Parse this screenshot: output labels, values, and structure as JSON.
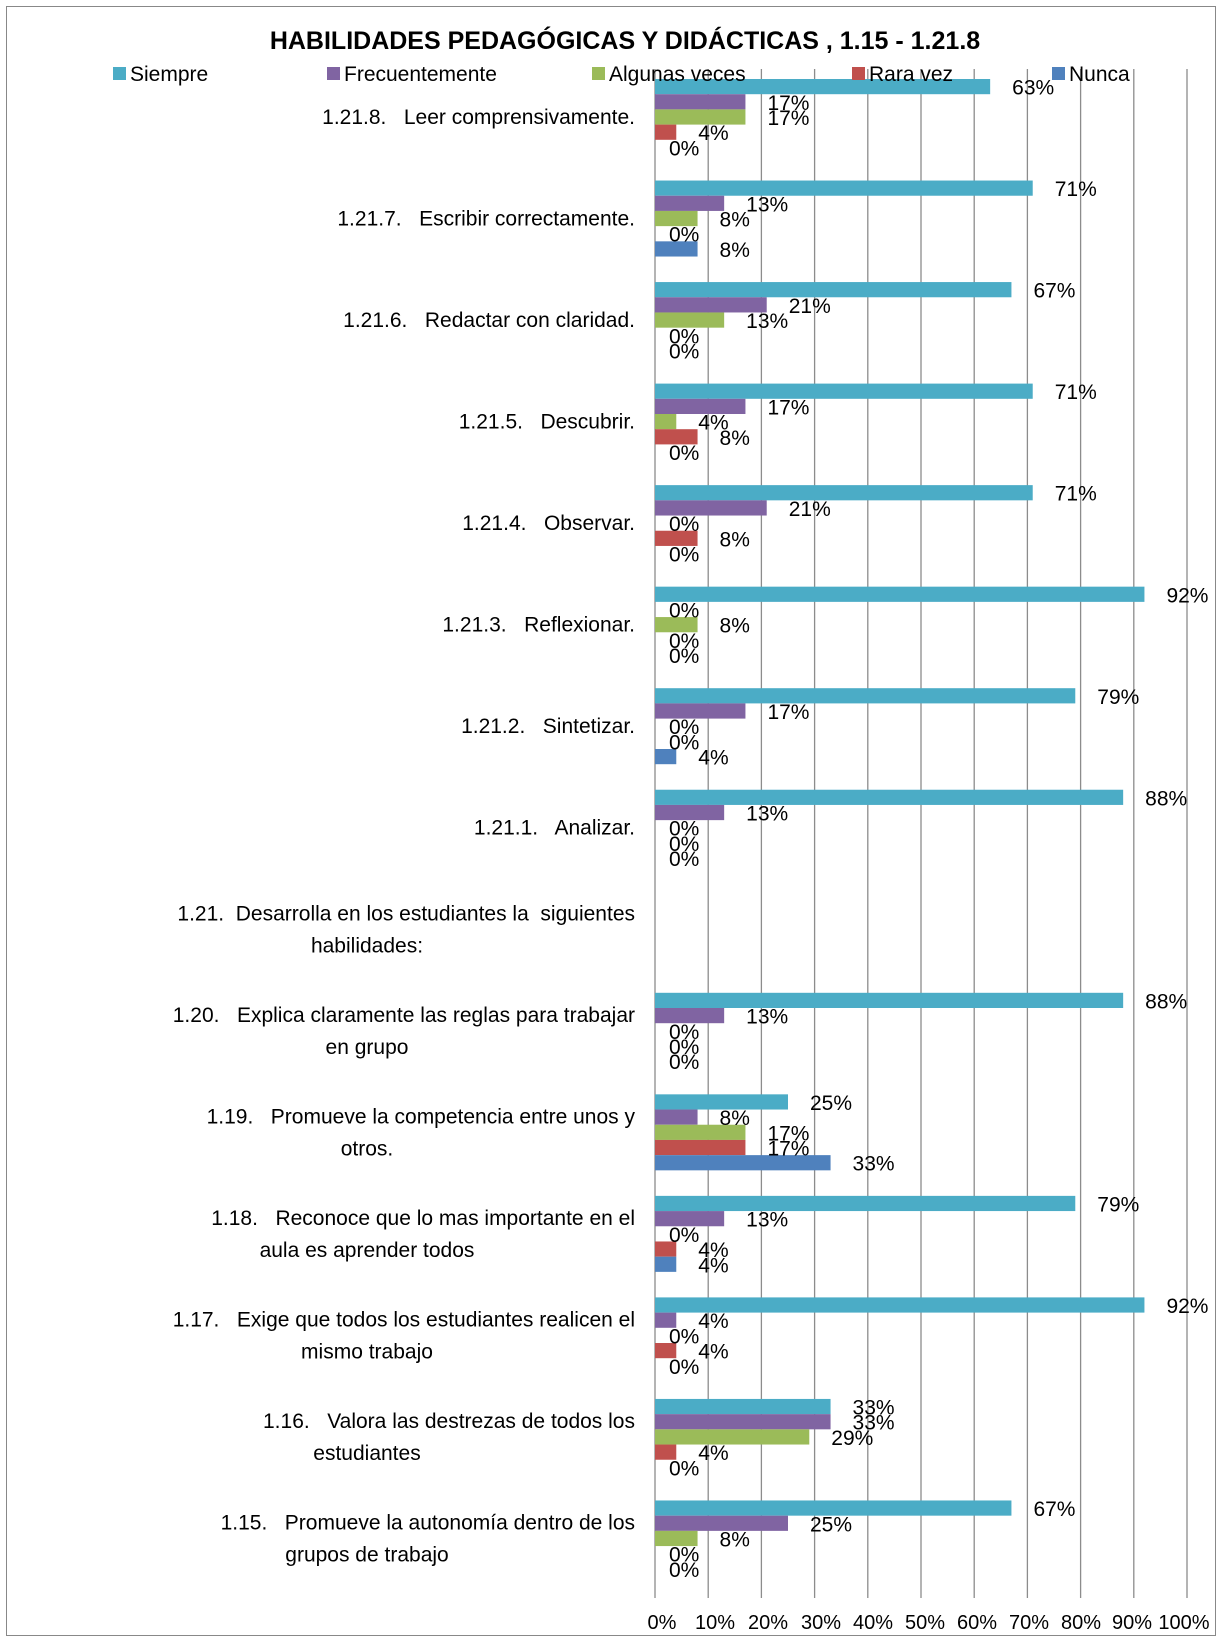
{
  "chart_data": {
    "type": "bar",
    "orientation": "horizontal",
    "title": "HABILIDADES PEDAGÓGICAS Y DIDÁCTICAS , 1.15 - 1.21.8",
    "xlim": [
      0,
      100
    ],
    "x_ticks": [
      "0%",
      "10%",
      "20%",
      "30%",
      "40%",
      "50%",
      "60%",
      "70%",
      "80%",
      "90%",
      "100%"
    ],
    "grid": true,
    "legend_position": "top",
    "categories": [
      [
        "1.21.8.   Leer comprensivamente."
      ],
      [
        "1.21.7.   Escribir correctamente."
      ],
      [
        "1.21.6.   Redactar con claridad."
      ],
      [
        "1.21.5.   Descubrir."
      ],
      [
        "1.21.4.   Observar."
      ],
      [
        "1.21.3.   Reflexionar."
      ],
      [
        "1.21.2.   Sintetizar."
      ],
      [
        "1.21.1.   Analizar."
      ],
      [
        "1.21.  Desarrolla en los estudiantes la  siguientes",
        "habilidades:"
      ],
      [
        "1.20.   Explica claramente las reglas para trabajar",
        "en grupo"
      ],
      [
        "1.19.   Promueve la competencia entre unos y",
        "otros."
      ],
      [
        "1.18.   Reconoce que lo mas importante en el",
        "aula es aprender todos"
      ],
      [
        "1.17.   Exige que todos los estudiantes realicen el",
        "mismo trabajo"
      ],
      [
        "1.16.   Valora las destrezas de todos los",
        "estudiantes"
      ],
      [
        "1.15.   Promueve la autonomía dentro de los",
        "grupos de trabajo"
      ]
    ],
    "series": [
      {
        "name": "Siempre",
        "color": "#4bacc6",
        "values": [
          63,
          71,
          67,
          71,
          71,
          92,
          79,
          88,
          null,
          88,
          25,
          79,
          92,
          33,
          67
        ]
      },
      {
        "name": "Frecuentemente",
        "color": "#8064a2",
        "values": [
          17,
          13,
          21,
          17,
          21,
          0,
          17,
          13,
          null,
          13,
          8,
          13,
          4,
          33,
          25
        ]
      },
      {
        "name": "Algunas veces",
        "color": "#9bbb59",
        "values": [
          17,
          8,
          13,
          4,
          0,
          8,
          0,
          0,
          null,
          0,
          17,
          0,
          0,
          29,
          8
        ]
      },
      {
        "name": "Rara vez",
        "color": "#c0504d",
        "values": [
          4,
          0,
          0,
          8,
          8,
          0,
          0,
          0,
          null,
          0,
          17,
          4,
          4,
          4,
          0
        ]
      },
      {
        "name": "Nunca",
        "color": "#4f81bd",
        "values": [
          0,
          8,
          0,
          0,
          0,
          0,
          4,
          0,
          null,
          0,
          33,
          4,
          0,
          0,
          0
        ]
      }
    ]
  }
}
